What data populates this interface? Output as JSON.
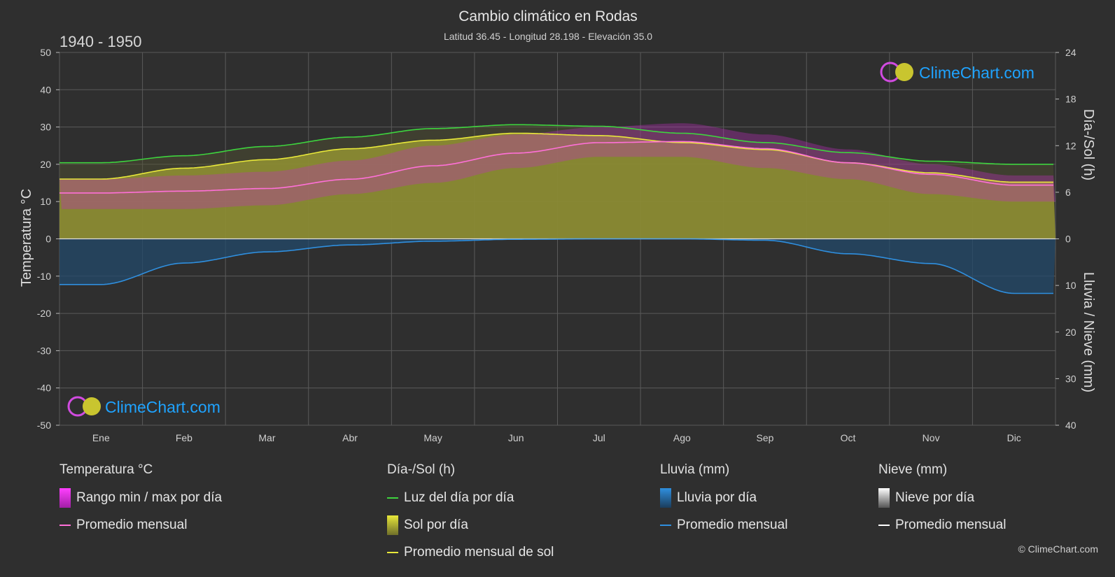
{
  "title": "Cambio climático en Rodas",
  "subtitle": "Latitud 36.45 - Longitud 28.198 - Elevación 35.0",
  "period": "1940 - 1950",
  "watermark": "ClimeChart.com",
  "copyright": "© ClimeChart.com",
  "colors": {
    "background": "#2f2f2f",
    "grid": "#5a5a5a",
    "daylight": "#3ed43e",
    "sun_avg": "#e8e83a",
    "sun_fill": "#8e8e33",
    "temp_avg": "#ff70d8",
    "temp_range": "#c02fbf",
    "rain_avg": "#2f8fdf",
    "rain_fill": "#23496b",
    "snow_avg": "#ffffff",
    "brand": "#1fa3ff"
  },
  "legend": {
    "temperature": {
      "header": "Temperatura °C",
      "range": "Rango min / max por día",
      "avg": "Promedio mensual"
    },
    "daysun": {
      "header": "Día-/Sol (h)",
      "daylight": "Luz del día por día",
      "sun": "Sol por día",
      "sun_avg": "Promedio mensual de sol"
    },
    "rain": {
      "header": "Lluvia (mm)",
      "daily": "Lluvia por día",
      "avg": "Promedio mensual"
    },
    "snow": {
      "header": "Nieve (mm)",
      "daily": "Nieve por día",
      "avg": "Promedio mensual"
    }
  },
  "chart_data": {
    "type": "line",
    "title": "Cambio climático en Rodas",
    "categories": [
      "Ene",
      "Feb",
      "Mar",
      "Abr",
      "May",
      "Jun",
      "Jul",
      "Ago",
      "Sep",
      "Oct",
      "Nov",
      "Dic"
    ],
    "y_left": {
      "label": "Temperatura °C",
      "range": [
        -50,
        50
      ],
      "ticks": [
        50,
        40,
        30,
        20,
        10,
        0,
        -10,
        -20,
        -30,
        -40,
        -50
      ]
    },
    "y_right_top": {
      "label": "Día-/Sol (h)",
      "range": [
        0,
        24
      ],
      "ticks": [
        24,
        18,
        12,
        6,
        0
      ]
    },
    "y_right_bottom": {
      "label": "Lluvia / Nieve (mm)",
      "range": [
        0,
        40
      ],
      "ticks": [
        0,
        10,
        20,
        30,
        40
      ]
    },
    "grid": true,
    "series": [
      {
        "name": "Luz del día por día",
        "unit": "h",
        "values": [
          9.8,
          10.7,
          11.9,
          13.1,
          14.2,
          14.7,
          14.5,
          13.6,
          12.4,
          11.1,
          10.0,
          9.6
        ]
      },
      {
        "name": "Promedio mensual de sol",
        "unit": "h",
        "values": [
          7.7,
          9.1,
          10.2,
          11.6,
          12.7,
          13.6,
          13.3,
          12.4,
          11.5,
          9.8,
          8.5,
          7.3
        ]
      },
      {
        "name": "Promedio mensual",
        "unit": "°C",
        "values": [
          12.3,
          12.8,
          13.5,
          16.0,
          19.6,
          23.0,
          25.8,
          26.1,
          24.2,
          20.4,
          17.3,
          14.4
        ]
      },
      {
        "name": "Lluvia promedio mensual",
        "unit": "mm",
        "values": [
          9.8,
          5.2,
          2.8,
          1.3,
          0.5,
          0.1,
          0.0,
          0.0,
          0.3,
          3.2,
          5.3,
          11.7
        ]
      },
      {
        "name": "Nieve promedio mensual",
        "unit": "mm",
        "values": [
          0,
          0,
          0,
          0,
          0,
          0,
          0,
          0,
          0,
          0,
          0,
          0
        ]
      }
    ],
    "temp_range_by_month": {
      "min": [
        8,
        8,
        9,
        12,
        15,
        19,
        22,
        22,
        19,
        16,
        12,
        10
      ],
      "max": [
        16,
        17,
        18,
        21,
        25,
        28,
        30,
        31,
        28,
        24,
        20,
        17
      ]
    }
  }
}
